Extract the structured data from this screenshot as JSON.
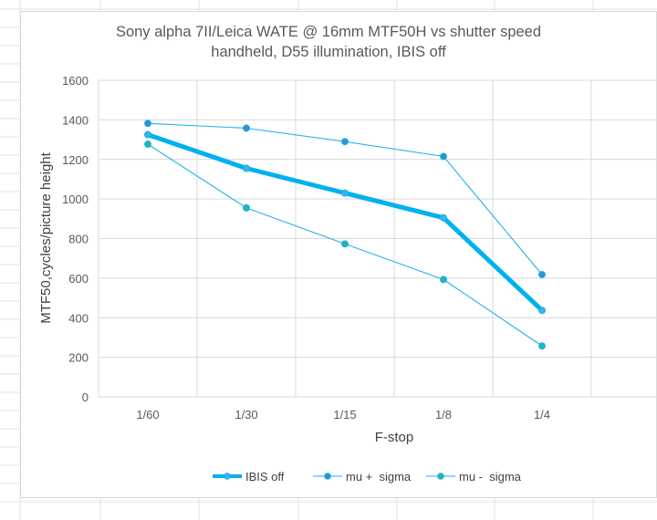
{
  "chart_data": {
    "type": "line",
    "title": "Sony alpha 7II/Leica WATE @ 16mm MTF50H vs shutter speed",
    "subtitle": "handheld, D55 illumination, IBIS off",
    "xlabel": "F-stop",
    "ylabel": "MTF50,cycles/picture height",
    "categories": [
      "1/60",
      "1/30",
      "1/15",
      "1/8",
      "1/4"
    ],
    "ylim": [
      0,
      1600
    ],
    "yticks": [
      0,
      200,
      400,
      600,
      800,
      1000,
      1200,
      1400,
      1600
    ],
    "grid": true,
    "legend_position": "bottom",
    "series": [
      {
        "name": "IBIS off",
        "values": [
          1325,
          1155,
          1030,
          905,
          437
        ],
        "color": "#00b0f0",
        "marker_color": "#3db3e3",
        "emphasis": true
      },
      {
        "name": "mu +  sigma",
        "values": [
          1382,
          1358,
          1290,
          1215,
          618
        ],
        "color": "#22b2e8",
        "marker_color": "#2e95cc",
        "emphasis": false
      },
      {
        "name": "mu -  sigma",
        "values": [
          1277,
          955,
          773,
          593,
          257
        ],
        "color": "#22b2e8",
        "marker_color": "#22b5b7",
        "emphasis": false
      }
    ]
  }
}
